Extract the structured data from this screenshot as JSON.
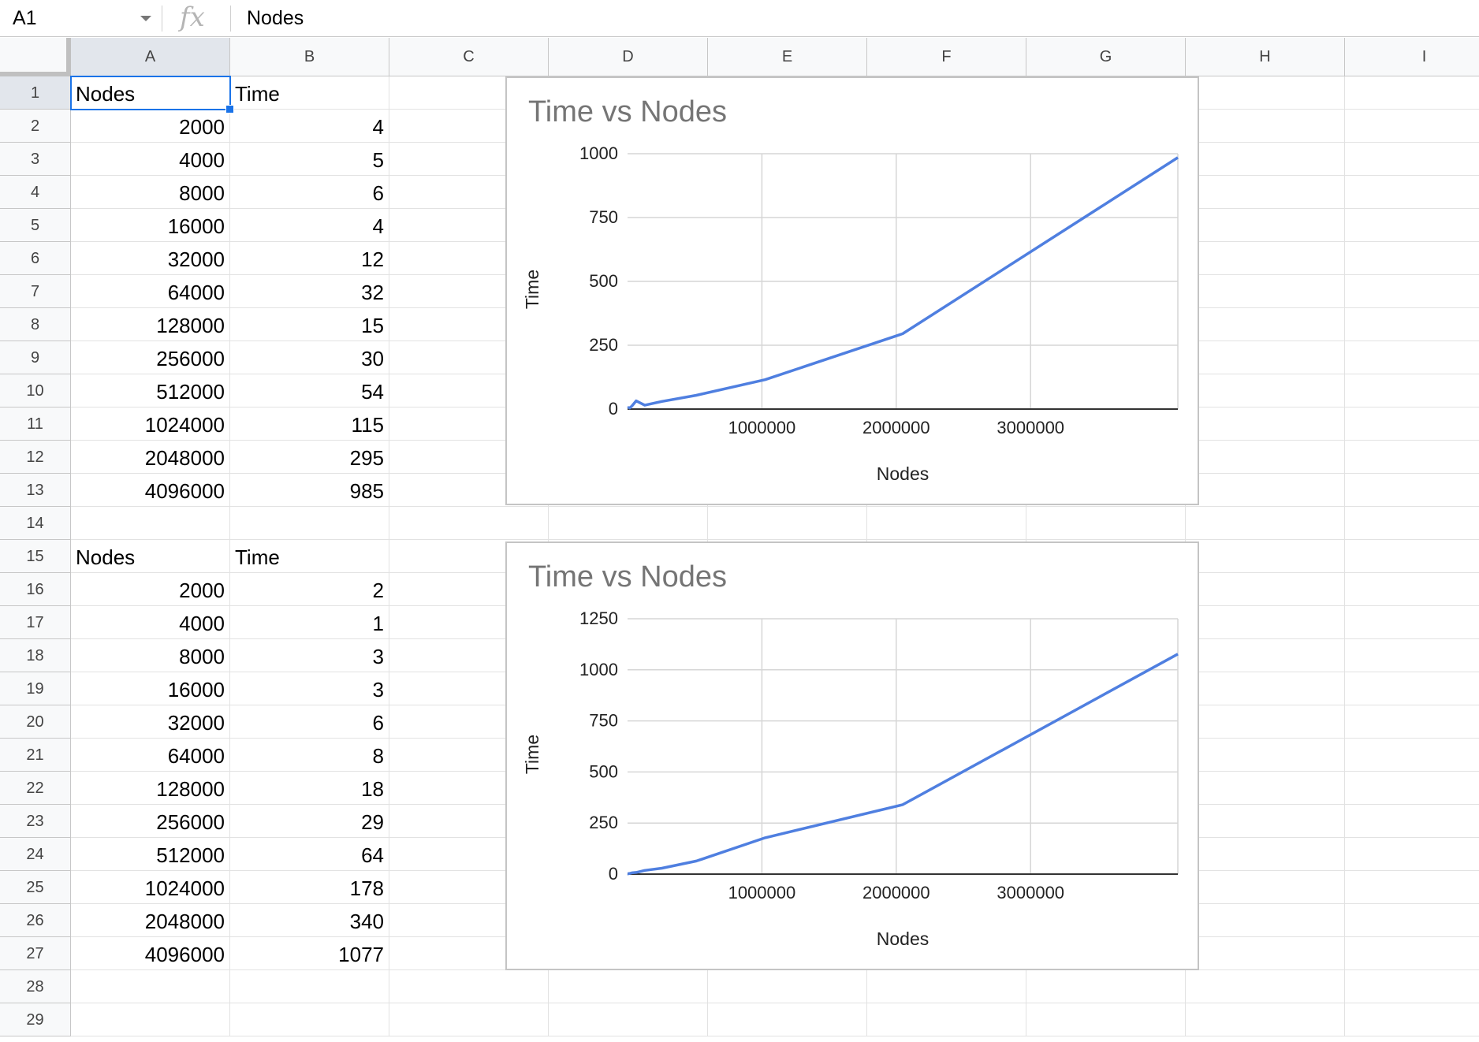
{
  "formula_bar": {
    "name_box": "A1",
    "fx_label": "fx",
    "value": "Nodes"
  },
  "sheet": {
    "columns": [
      "A",
      "B",
      "C",
      "D",
      "E",
      "F",
      "G",
      "H",
      "I"
    ],
    "rows": [
      1,
      2,
      3,
      4,
      5,
      6,
      7,
      8,
      9,
      10,
      11,
      12,
      13,
      14,
      15,
      16,
      17,
      18,
      19,
      20,
      21,
      22,
      23,
      24,
      25,
      26,
      27,
      28,
      29
    ],
    "selected_cell": "A1",
    "table1": {
      "header": [
        "Nodes",
        "Time"
      ],
      "data": [
        [
          2000,
          4
        ],
        [
          4000,
          5
        ],
        [
          8000,
          6
        ],
        [
          16000,
          4
        ],
        [
          32000,
          12
        ],
        [
          64000,
          32
        ],
        [
          128000,
          15
        ],
        [
          256000,
          30
        ],
        [
          512000,
          54
        ],
        [
          1024000,
          115
        ],
        [
          2048000,
          295
        ],
        [
          4096000,
          985
        ]
      ]
    },
    "table2": {
      "header": [
        "Nodes",
        "Time"
      ],
      "data": [
        [
          2000,
          2
        ],
        [
          4000,
          1
        ],
        [
          8000,
          3
        ],
        [
          16000,
          3
        ],
        [
          32000,
          6
        ],
        [
          64000,
          8
        ],
        [
          128000,
          18
        ],
        [
          256000,
          29
        ],
        [
          512000,
          64
        ],
        [
          1024000,
          178
        ],
        [
          2048000,
          340
        ],
        [
          4096000,
          1077
        ]
      ]
    }
  },
  "chart_data": [
    {
      "type": "line",
      "title": "Time vs Nodes",
      "xlabel": "Nodes",
      "ylabel": "Time",
      "x": [
        2000,
        4000,
        8000,
        16000,
        32000,
        64000,
        128000,
        256000,
        512000,
        1024000,
        2048000,
        4096000
      ],
      "series": [
        {
          "values": [
            4,
            5,
            6,
            4,
            12,
            32,
            15,
            30,
            54,
            115,
            295,
            985
          ]
        }
      ],
      "xticks": [
        1000000,
        2000000,
        3000000
      ],
      "yticks": [
        0,
        250,
        500,
        750,
        1000
      ],
      "xlim": [
        0,
        4096000
      ],
      "ylim": [
        0,
        1000
      ],
      "line_color": "#4f7fe0",
      "grid": true
    },
    {
      "type": "line",
      "title": "Time vs Nodes",
      "xlabel": "Nodes",
      "ylabel": "Time",
      "x": [
        2000,
        4000,
        8000,
        16000,
        32000,
        64000,
        128000,
        256000,
        512000,
        1024000,
        2048000,
        4096000
      ],
      "series": [
        {
          "values": [
            2,
            1,
            3,
            3,
            6,
            8,
            18,
            29,
            64,
            178,
            340,
            1077
          ]
        }
      ],
      "xticks": [
        1000000,
        2000000,
        3000000
      ],
      "yticks": [
        0,
        250,
        500,
        750,
        1000,
        1250
      ],
      "xlim": [
        0,
        4096000
      ],
      "ylim": [
        0,
        1250
      ],
      "line_color": "#4f7fe0",
      "grid": true
    }
  ]
}
